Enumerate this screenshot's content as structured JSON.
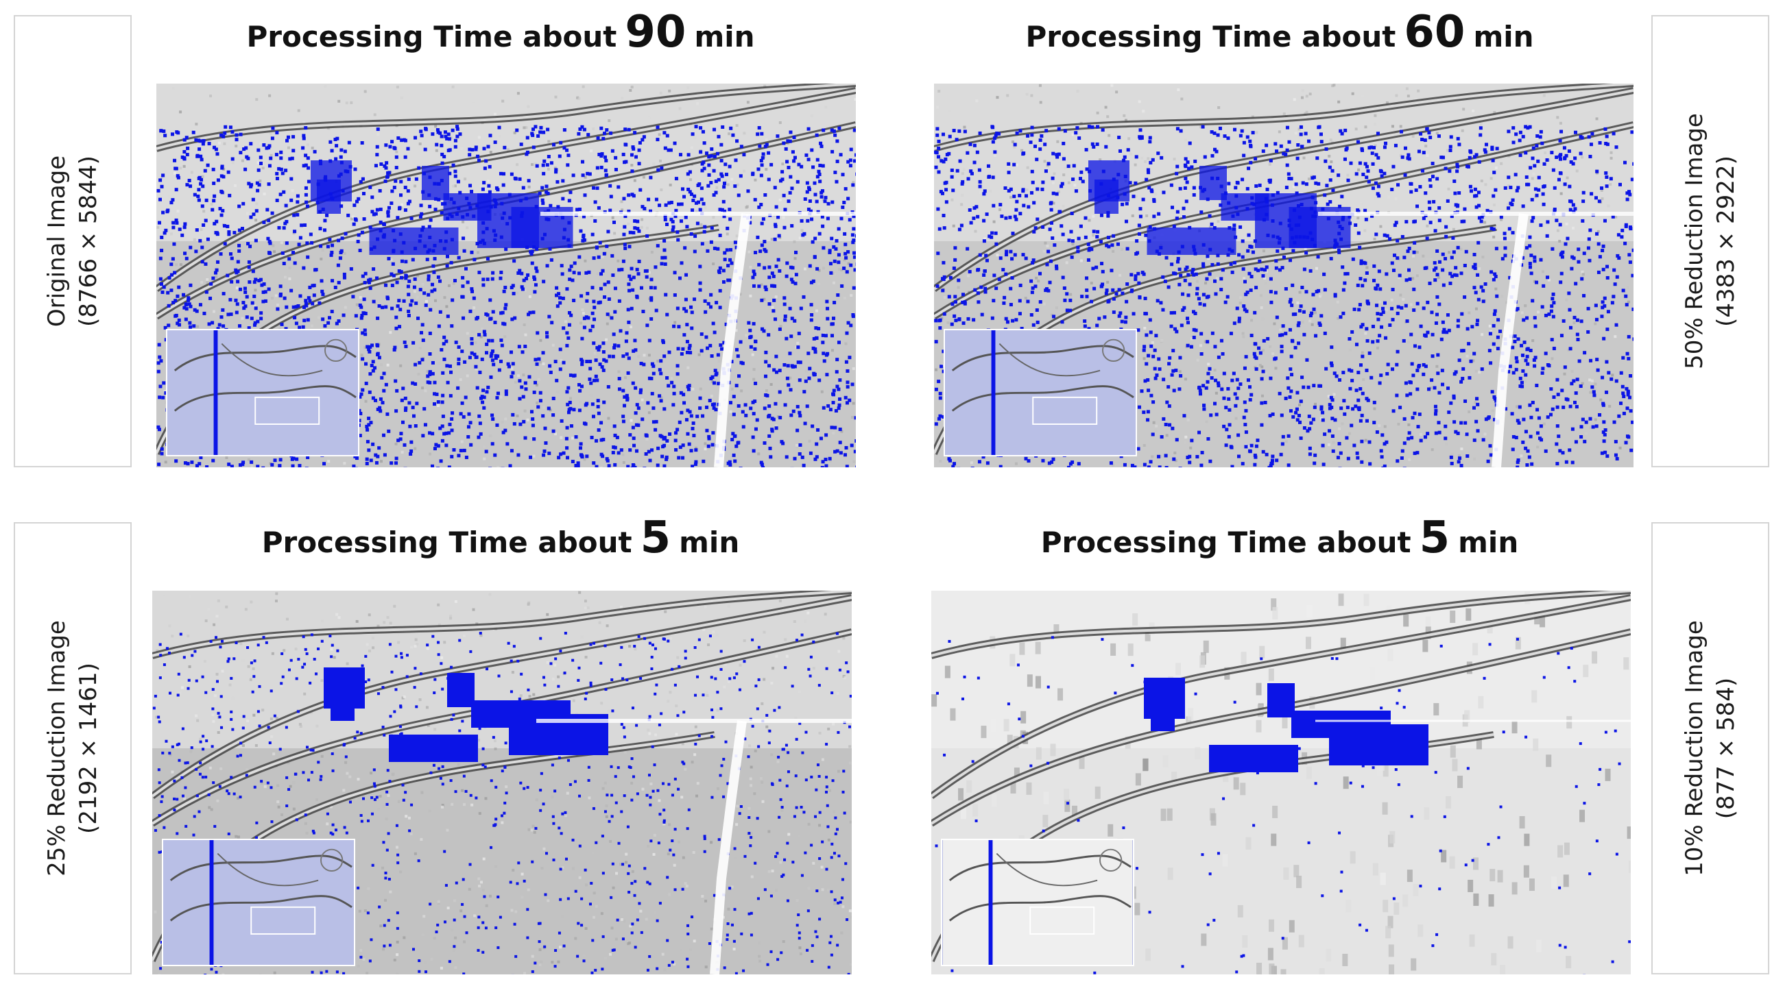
{
  "labels": {
    "original": {
      "line1": "Original Image",
      "line2": "(8766 × 5844)"
    },
    "reduce50": {
      "line1": "50% Reduction Image",
      "line2": "(4383 × 2922)"
    },
    "reduce25": {
      "line1": "25% Reduction Image",
      "line2": "(2192 × 1461)"
    },
    "reduce10": {
      "line1": "10% Reduction Image",
      "line2": "(877 × 584)"
    }
  },
  "titles": {
    "prefix": "Processing Time about",
    "unit": "min",
    "t1": "90",
    "t2": "60",
    "t3": "5",
    "t4": "5"
  },
  "colors": {
    "highlight": "#0b14e6",
    "background": "#ffffff",
    "label_border": "#d4d4d4"
  }
}
